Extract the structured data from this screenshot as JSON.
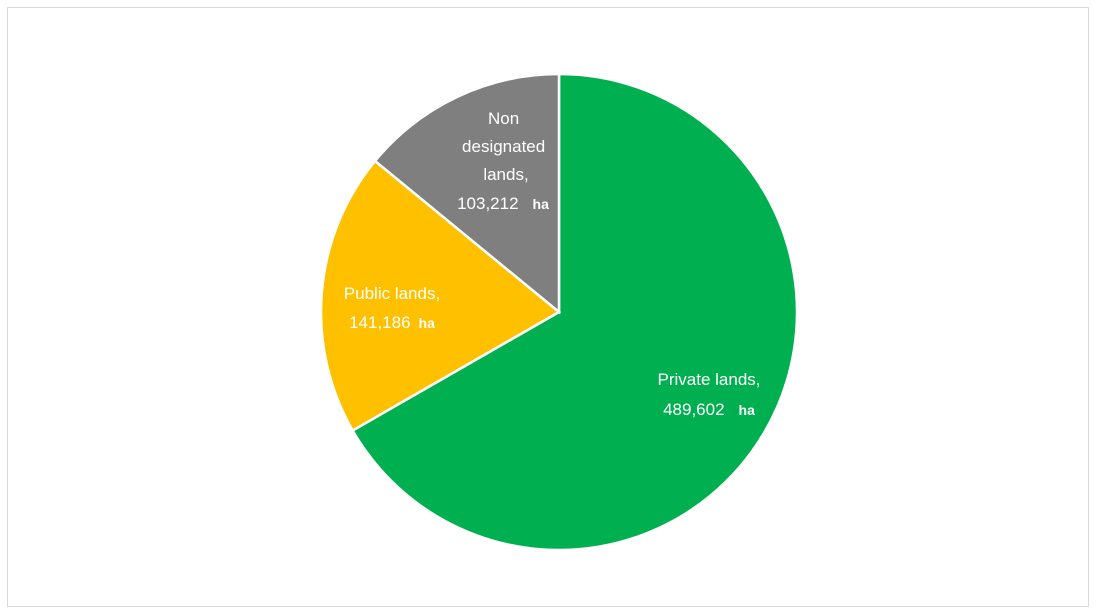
{
  "chart_data": {
    "type": "pie",
    "title": "",
    "unit": "ha",
    "slices": [
      {
        "label": "Private lands,",
        "value": 489602,
        "value_text": "489,602",
        "color": "#00b050"
      },
      {
        "label": "Public lands,",
        "value": 141186,
        "value_text": "141,186",
        "color": "#ffc000"
      },
      {
        "label": "Non designated lands,",
        "value": 103212,
        "value_text": "103,212",
        "color": "#7f7f7f"
      }
    ]
  }
}
